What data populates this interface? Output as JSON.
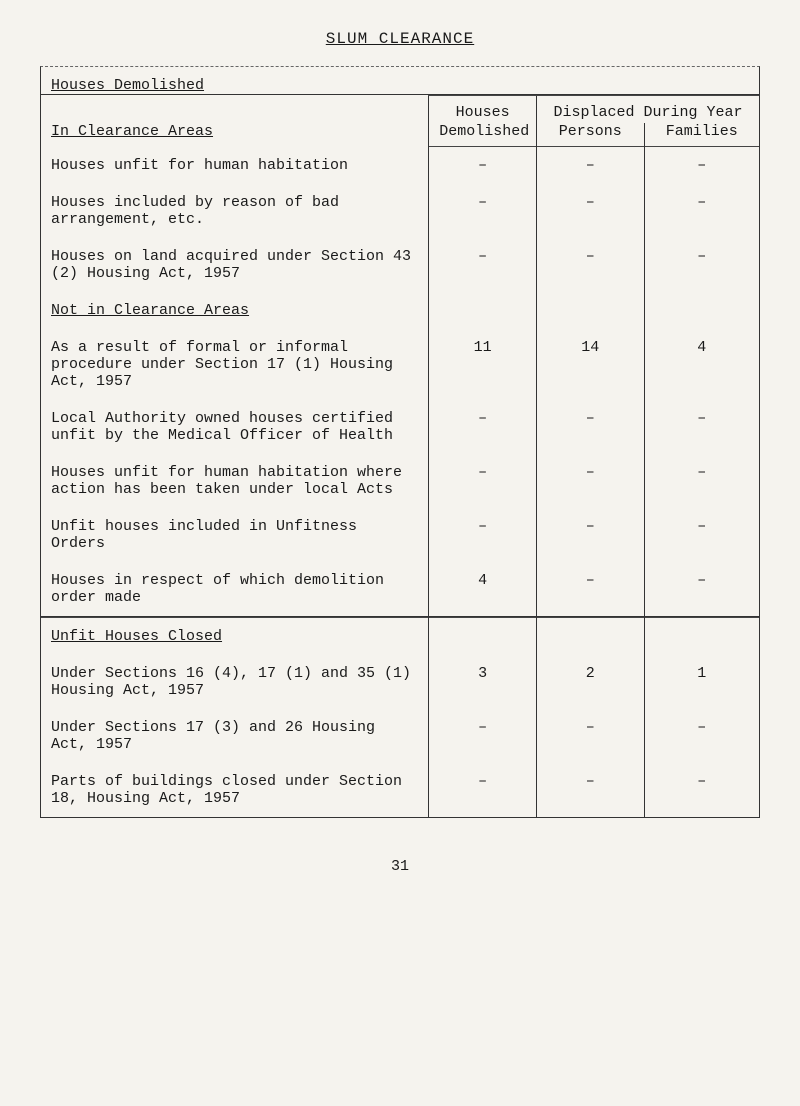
{
  "page_title": "SLUM CLEARANCE",
  "top_section": "Houses Demolished",
  "headers": {
    "col1": "In Clearance Areas",
    "houses": "Houses",
    "demolished": "Demolished",
    "displaced": "Displaced During Year",
    "persons": "Persons",
    "families": "Families"
  },
  "rows": {
    "r1": {
      "label": "Houses unfit for human habitation",
      "houses": "–",
      "persons": "–",
      "families": "–"
    },
    "r2": {
      "label": "Houses included by reason of bad arrangement, etc.",
      "houses": "–",
      "persons": "–",
      "families": "–"
    },
    "r3": {
      "label": "Houses on land acquired under Section 43 (2) Housing Act, 1957",
      "houses": "–",
      "persons": "–",
      "families": "–"
    },
    "r4_heading": "Not in Clearance Areas",
    "r5": {
      "label": "As a result of formal or informal procedure under Section 17 (1) Housing Act, 1957",
      "houses": "11",
      "persons": "14",
      "families": "4"
    },
    "r6": {
      "label": "Local Authority owned houses certified unfit by the Medical Officer of Health",
      "houses": "–",
      "persons": "–",
      "families": "–"
    },
    "r7": {
      "label": "Houses unfit for human habitation where action has been taken under local Acts",
      "houses": "–",
      "persons": "–",
      "families": "–"
    },
    "r8": {
      "label": "Unfit houses included in Unfitness Orders",
      "houses": "–",
      "persons": "–",
      "families": "–"
    },
    "r9": {
      "label": "Houses in respect of which demolition order made",
      "houses": "4",
      "persons": "–",
      "families": "–"
    },
    "sec2_heading": "Unfit Houses Closed",
    "r10": {
      "label": "Under Sections 16 (4), 17 (1) and 35 (1) Housing Act, 1957",
      "houses": "3",
      "persons": "2",
      "families": "1"
    },
    "r11": {
      "label": "Under Sections 17 (3) and 26 Housing Act, 1957",
      "houses": "–",
      "persons": "–",
      "families": "–"
    },
    "r12": {
      "label": "Parts of buildings closed under Section 18, Housing Act, 1957",
      "houses": "–",
      "persons": "–",
      "families": "–"
    }
  },
  "page_number": "31"
}
